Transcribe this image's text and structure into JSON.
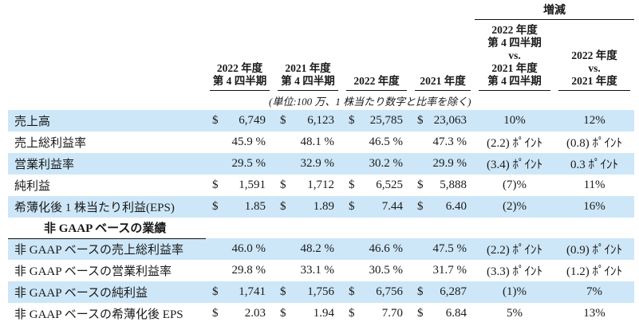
{
  "colors": {
    "row_highlight": "#cde7f8",
    "text": "#1a1a1a",
    "rule": "#111111",
    "background": "#ffffff"
  },
  "header": {
    "change_group": "増減",
    "q4_2022": [
      "2022 年度",
      "第 4 四半期"
    ],
    "q4_2021": [
      "2021 年度",
      "第 4 四半期"
    ],
    "fy_2022": "2022 年度",
    "fy_2021": "2021 年度",
    "chg_q4": [
      "2022 年度",
      "第 4 四半期",
      "vs.",
      "2021 年度",
      "第 4 四半期"
    ],
    "chg_fy": [
      "2022 年度",
      "vs.",
      "2021 年度"
    ],
    "unit_note": "(単位:100 万、1 株当たり数字と比率を除く)"
  },
  "section_header": "非 GAAP ベースの業績",
  "rows": [
    {
      "label": "売上高",
      "p1": "$",
      "v1": "6,749",
      "p2": "$",
      "v2": "6,123",
      "p3": "$",
      "v3": "25,785",
      "p4": "$",
      "v4": "23,063",
      "chg_q": "10%",
      "chg_y": "12%"
    },
    {
      "label": "売上総利益率",
      "v1": "45.9 %",
      "v2": "48.1 %",
      "v3": "46.5 %",
      "v4": "47.3 %",
      "chg_q": "(2.2) ﾎﾟｲﾝﾄ",
      "chg_y": "(0.8) ﾎﾟｲﾝﾄ"
    },
    {
      "label": "営業利益率",
      "v1": "29.5 %",
      "v2": "32.9 %",
      "v3": "30.2 %",
      "v4": "29.9 %",
      "chg_q": "(3.4) ﾎﾟｲﾝﾄ",
      "chg_y": "0.3 ﾎﾟｲﾝﾄ"
    },
    {
      "label": "純利益",
      "p1": "$",
      "v1": "1,591",
      "p2": "$",
      "v2": "1,712",
      "p3": "$",
      "v3": "6,525",
      "p4": "$",
      "v4": "5,888",
      "chg_q": "(7)%",
      "chg_y": "11%"
    },
    {
      "label": "希薄化後 1 株当たり利益(EPS)",
      "p1": "$",
      "v1": "1.85",
      "p2": "$",
      "v2": "1.89",
      "p3": "$",
      "v3": "7.44",
      "p4": "$",
      "v4": "6.40",
      "chg_q": "(2)%",
      "chg_y": "16%"
    },
    {
      "label": "非 GAAP ベースの売上総利益率",
      "v1": "46.0 %",
      "v2": "48.2 %",
      "v3": "46.6 %",
      "v4": "47.5 %",
      "chg_q": "(2.2) ﾎﾟｲﾝﾄ",
      "chg_y": "(0.9) ﾎﾟｲﾝﾄ"
    },
    {
      "label": "非 GAAP ベースの営業利益率",
      "v1": "29.8 %",
      "v2": "33.1 %",
      "v3": "30.5 %",
      "v4": "31.7 %",
      "chg_q": "(3.3) ﾎﾟｲﾝﾄ",
      "chg_y": "(1.2) ﾎﾟｲﾝﾄ"
    },
    {
      "label": "非 GAAP ベースの純利益",
      "p1": "$",
      "v1": "1,741",
      "p2": "$",
      "v2": "1,756",
      "p3": "$",
      "v3": "6,756",
      "p4": "$",
      "v4": "6,287",
      "chg_q": "(1)%",
      "chg_y": "7%"
    },
    {
      "label": "非 GAAP ベースの希薄化後 EPS",
      "p1": "$",
      "v1": "2.03",
      "p2": "$",
      "v2": "1.94",
      "p3": "$",
      "v3": "7.70",
      "p4": "$",
      "v4": "6.84",
      "chg_q": "5%",
      "chg_y": "13%"
    }
  ]
}
